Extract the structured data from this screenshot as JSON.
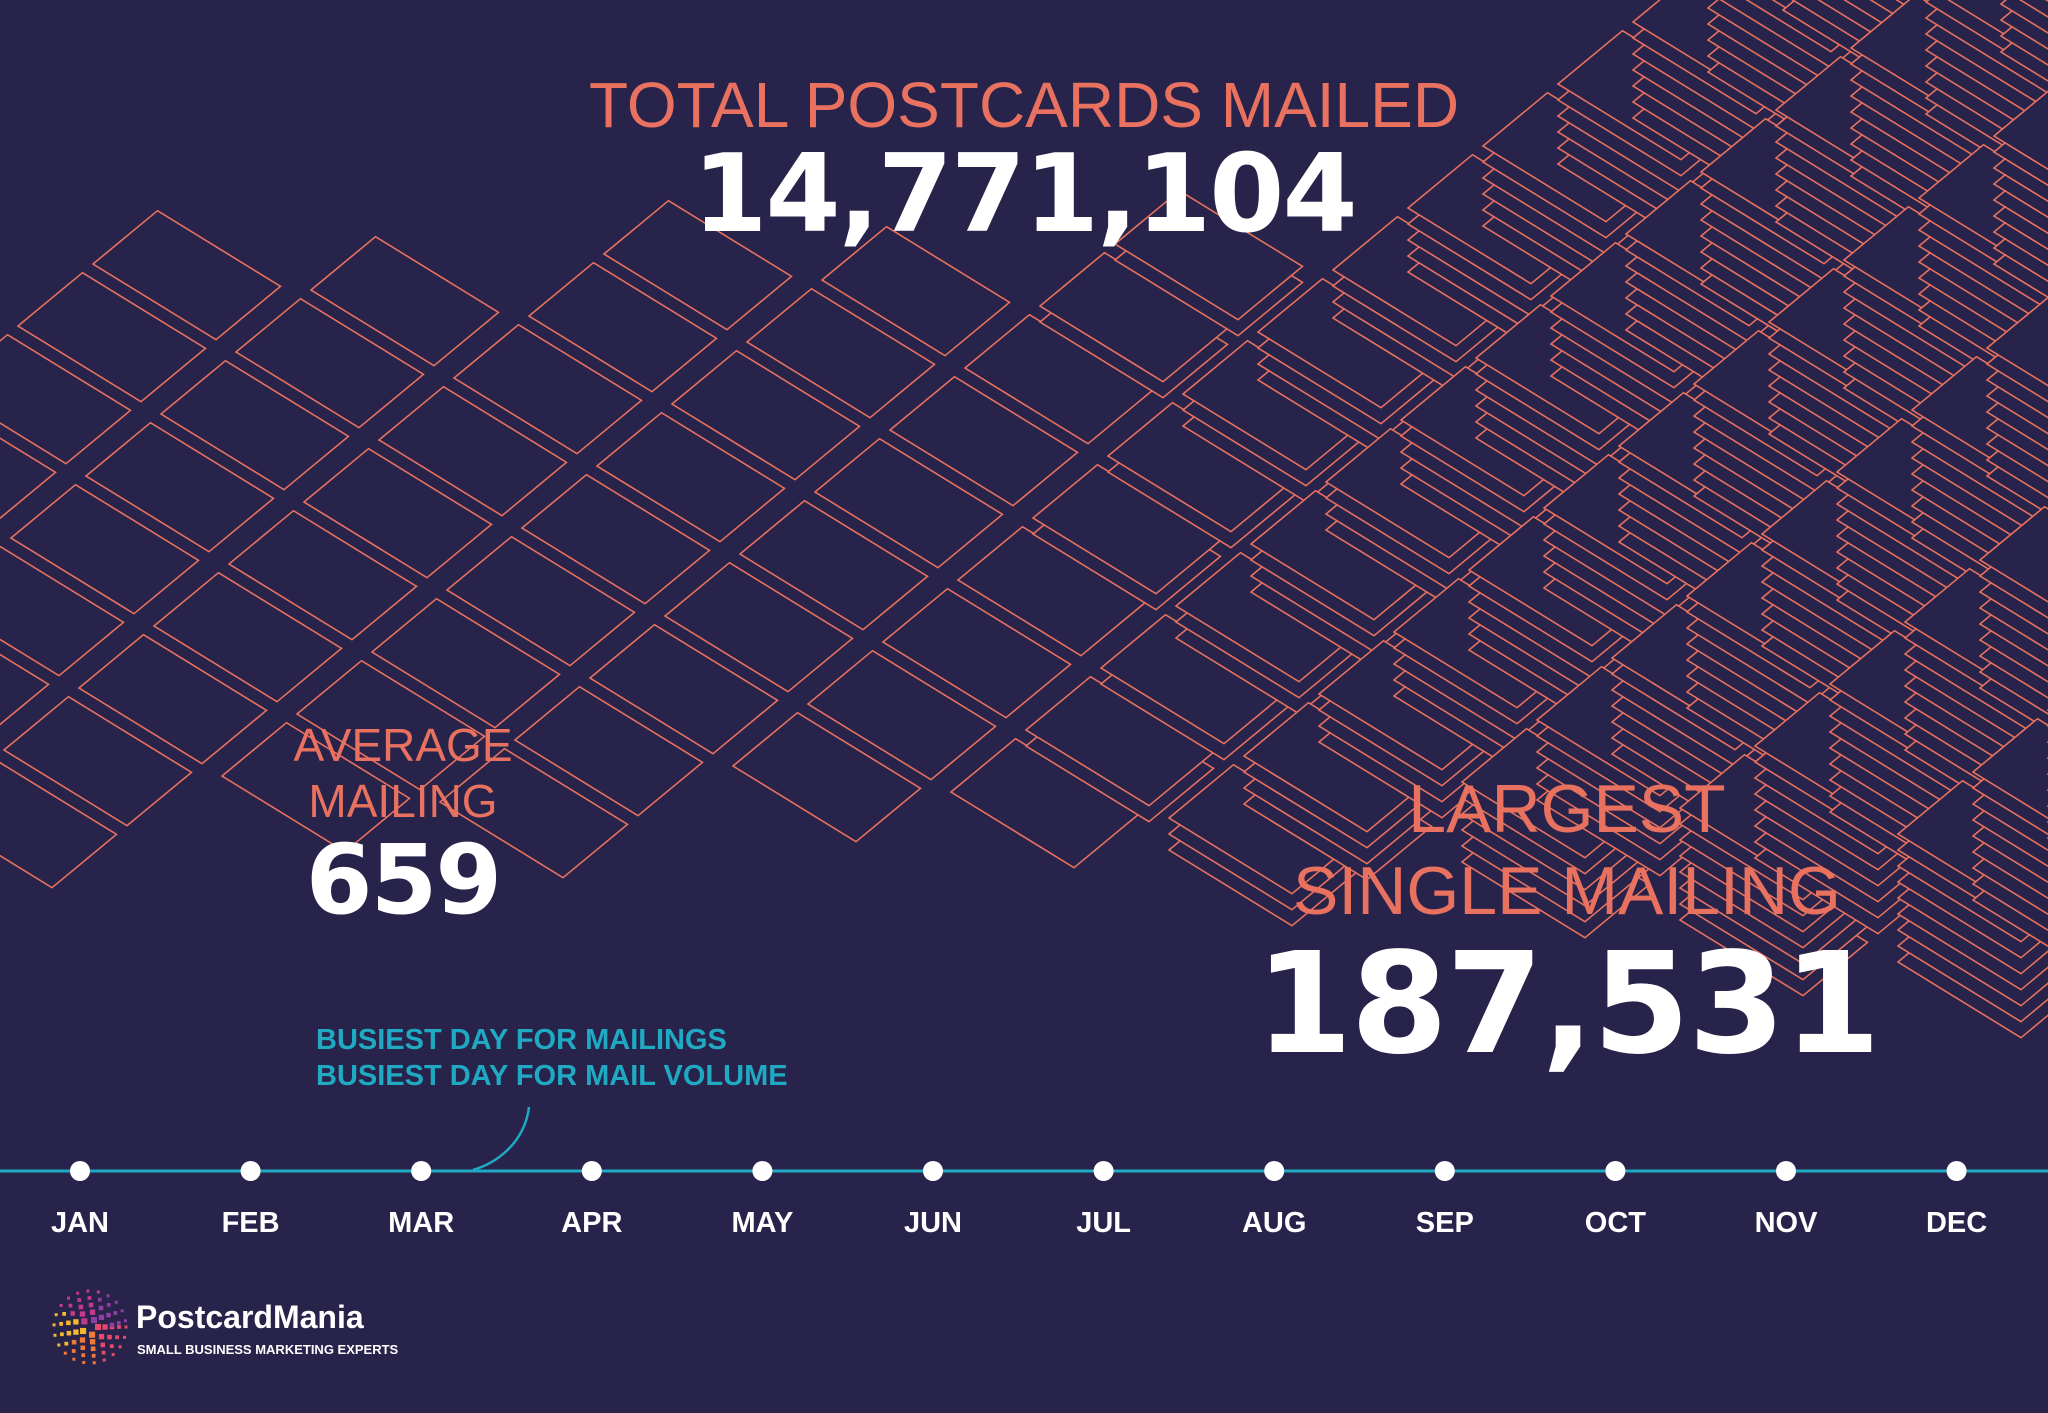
{
  "total": {
    "label": "TOTAL POSTCARDS MAILED",
    "value": "14,771,104"
  },
  "average": {
    "label_lines": [
      "AVERAGE",
      "MAILING"
    ],
    "value": "659"
  },
  "largest": {
    "label_lines": [
      "LARGEST",
      "SINGLE MAILING"
    ],
    "value": "187,531"
  },
  "busiest": [
    "BUSIEST DAY FOR MAILINGS",
    "BUSIEST DAY FOR MAIL VOLUME"
  ],
  "timeline": {
    "months": [
      "JAN",
      "FEB",
      "MAR",
      "APR",
      "MAY",
      "JUN",
      "JUL",
      "AUG",
      "SEP",
      "OCT",
      "NOV",
      "DEC"
    ]
  },
  "brand": {
    "name": "PostcardMania",
    "tagline": "SMALL BUSINESS MARKETING EXPERTS"
  }
}
